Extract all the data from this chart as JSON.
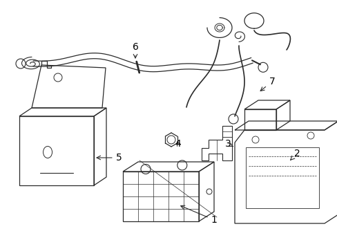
{
  "background_color": "#ffffff",
  "line_color": "#2a2a2a",
  "label_color": "#000000",
  "figsize": [
    4.89,
    3.6
  ],
  "dpi": 100
}
